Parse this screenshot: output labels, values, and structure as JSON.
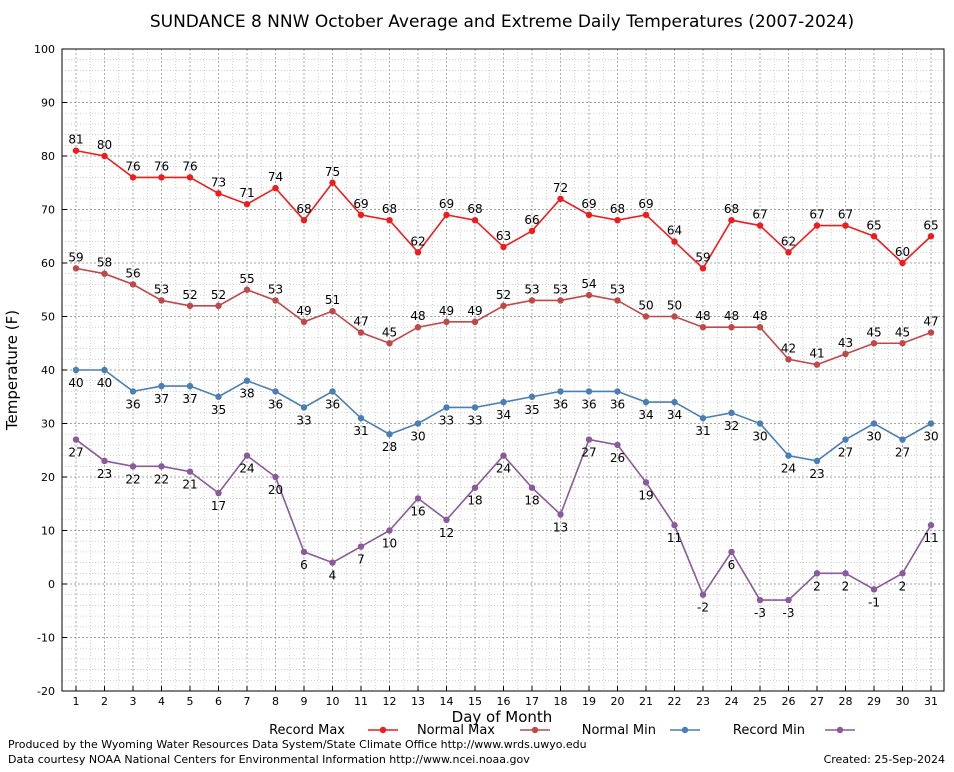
{
  "chart_data": {
    "type": "line",
    "title": "SUNDANCE 8 NNW October Average and Extreme Daily Temperatures (2007-2024)",
    "xlabel": "Day of Month",
    "ylabel": "Temperature (F)",
    "ylim": [
      -20,
      100
    ],
    "yticks": [
      -20,
      -10,
      0,
      10,
      20,
      30,
      40,
      50,
      60,
      70,
      80,
      90,
      100
    ],
    "x": [
      1,
      2,
      3,
      4,
      5,
      6,
      7,
      8,
      9,
      10,
      11,
      12,
      13,
      14,
      15,
      16,
      17,
      18,
      19,
      20,
      21,
      22,
      23,
      24,
      25,
      26,
      27,
      28,
      29,
      30,
      31
    ],
    "grid": true,
    "legend_position": "bottom",
    "series": [
      {
        "name": "Record Max",
        "color": "#ee1c1c",
        "label_pos": "above",
        "values": [
          81,
          80,
          76,
          76,
          76,
          73,
          71,
          74,
          68,
          75,
          69,
          68,
          62,
          69,
          68,
          63,
          66,
          72,
          69,
          68,
          69,
          64,
          59,
          68,
          67,
          62,
          67,
          67,
          65,
          60,
          65
        ]
      },
      {
        "name": "Normal Max",
        "color": "#c04848",
        "label_pos": "above",
        "values": [
          59,
          58,
          56,
          53,
          52,
          52,
          55,
          53,
          49,
          51,
          47,
          45,
          48,
          49,
          49,
          52,
          53,
          53,
          54,
          53,
          50,
          50,
          48,
          48,
          48,
          42,
          41,
          43,
          45,
          45,
          47
        ]
      },
      {
        "name": "Normal Min",
        "color": "#4a7fb5",
        "label_pos": "below",
        "values": [
          40,
          40,
          36,
          37,
          37,
          35,
          38,
          36,
          33,
          36,
          31,
          28,
          30,
          33,
          33,
          34,
          35,
          36,
          36,
          36,
          34,
          34,
          31,
          32,
          30,
          24,
          23,
          27,
          30,
          27,
          30
        ]
      },
      {
        "name": "Record Min",
        "color": "#8a5a9c",
        "label_pos": "below",
        "values": [
          27,
          23,
          22,
          22,
          21,
          17,
          24,
          20,
          6,
          4,
          7,
          10,
          16,
          12,
          18,
          24,
          18,
          13,
          27,
          26,
          19,
          11,
          -2,
          6,
          -3,
          -3,
          2,
          2,
          -1,
          2,
          11
        ]
      }
    ]
  },
  "footer": {
    "line1": "Produced by the Wyoming Water Resources Data System/State Climate Office http://www.wrds.uwyo.edu",
    "line2": "Data courtesy NOAA National Centers for Environmental Information http://www.ncei.noaa.gov",
    "created": "Created:  25-Sep-2024"
  }
}
